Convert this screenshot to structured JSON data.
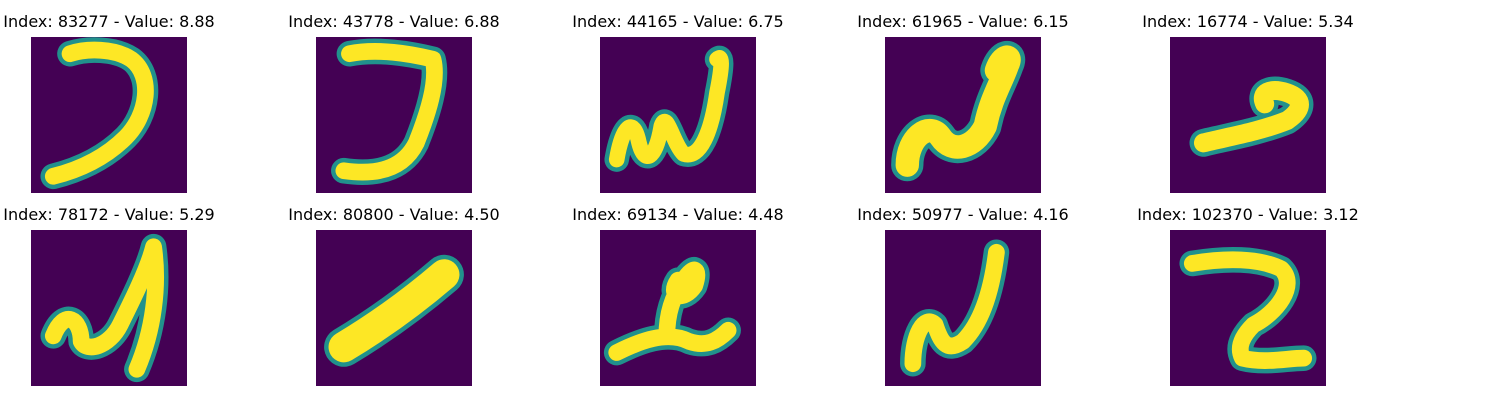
{
  "panels": [
    {
      "title": "Index: 83277 - Value: 8.88",
      "glyph": "hook-left-curve"
    },
    {
      "title": "Index: 43778 - Value: 6.88",
      "glyph": "hook-right"
    },
    {
      "title": "Index: 44165 - Value: 6.75",
      "glyph": "double-u"
    },
    {
      "title": "Index: 61965 - Value: 6.15",
      "glyph": "blob-loop"
    },
    {
      "title": "Index: 16774 - Value: 5.34",
      "glyph": "short-hook"
    },
    {
      "title": "Index: 78172 - Value: 5.29",
      "glyph": "tall-loop"
    },
    {
      "title": "Index: 80800 - Value: 4.50",
      "glyph": "diagonal-bar"
    },
    {
      "title": "Index: 69134 - Value: 4.48",
      "glyph": "looped-stroke"
    },
    {
      "title": "Index: 50977 - Value: 4.16",
      "glyph": "cursive-d"
    },
    {
      "title": "Index: 102370 - Value: 3.12",
      "glyph": "reverse-z"
    }
  ],
  "colors": {
    "background": "#440154",
    "stroke": "#fde725",
    "edge": "#21918c",
    "text": "#000000"
  }
}
